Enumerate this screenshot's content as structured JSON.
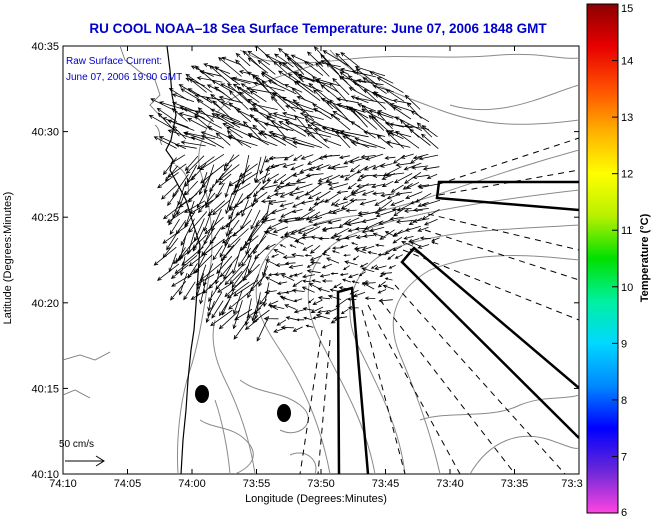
{
  "title": "RU COOL  NOAA–18  Sea Surface Temperature:  June 07, 2006 1848 GMT",
  "annotation": {
    "line1": "Raw Surface Current:",
    "line2": "June 07, 2006 19:00 GMT"
  },
  "axes": {
    "xlabel": "Longitude (Degrees:Minutes)",
    "ylabel": "Latitude (Degrees:Minutes)",
    "x_ticks": [
      "74:10",
      "74:05",
      "74:00",
      "73:55",
      "73:50",
      "73:45",
      "73:40",
      "73:35",
      "73:3"
    ],
    "y_ticks": [
      "40:35",
      "40:30",
      "40:25",
      "40:20",
      "40:15",
      "40:10"
    ]
  },
  "scale_label": "50 cm/s",
  "colorbar": {
    "label": "Temperature (°C)",
    "ticks": [
      "15",
      "14",
      "13",
      "12",
      "11",
      "10",
      "9",
      "8",
      "7",
      "6"
    ],
    "colors": [
      "#ff44e0",
      "#6a28d8",
      "#0000ff",
      "#0088ff",
      "#00d8ff",
      "#00f0a0",
      "#00e000",
      "#b8f000",
      "#ffff00",
      "#ffb000",
      "#ff5000",
      "#e80000",
      "#8c0000"
    ]
  },
  "colors": {
    "title": "#0000cc",
    "annotation": "#0000cc",
    "axis": "#000000",
    "contour": "#888888",
    "vector": "#000000"
  }
}
